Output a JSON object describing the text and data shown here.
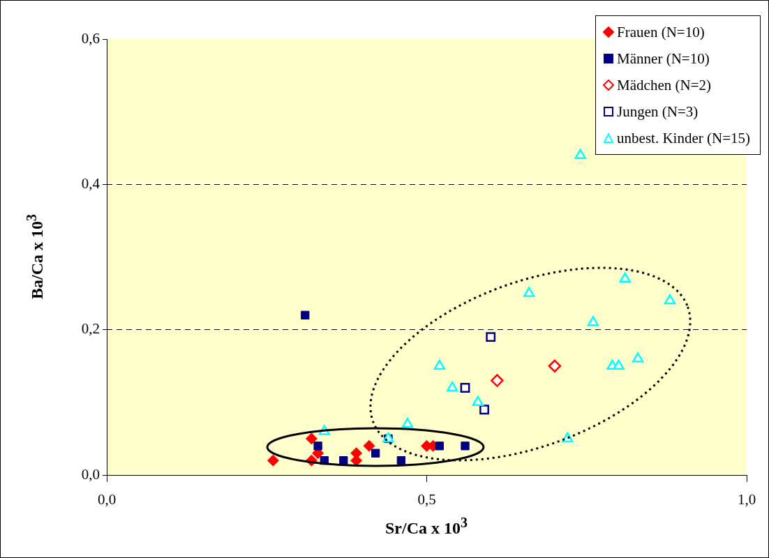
{
  "chart_data": {
    "type": "scatter",
    "xlabel": "Sr/Ca x 10$^{3}$",
    "ylabel": "Ba/Ca x 10$^{3}$",
    "xlim": [
      0,
      1
    ],
    "xticks": [
      {
        "value": 0,
        "label": "0,0"
      },
      {
        "value": 0.5,
        "label": "0,5"
      },
      {
        "value": 1,
        "label": "1,0"
      }
    ],
    "ylim": [
      0,
      0.6
    ],
    "yticks": [
      {
        "value": 0,
        "label": "0,0"
      },
      {
        "value": 0.2,
        "label": "0,2"
      },
      {
        "value": 0.4,
        "label": "0,4"
      },
      {
        "value": 0.6,
        "label": "0,6"
      }
    ],
    "grid": "y",
    "legend": "top right",
    "series": [
      {
        "name": "Frauen (N=10)",
        "color": "#ff0000",
        "marker": "diamond",
        "x": [
          0.26,
          0.32,
          0.32,
          0.33,
          0.39,
          0.39,
          0.41,
          0.5,
          0.51
        ],
        "values": [
          0.02,
          0.05,
          0.02,
          0.03,
          0.03,
          0.02,
          0.04,
          0.04,
          0.04
        ]
      },
      {
        "name": "Männer (N=10)",
        "color": "#000080",
        "marker": "square",
        "x": [
          0.31,
          0.33,
          0.34,
          0.37,
          0.42,
          0.44,
          0.46,
          0.52,
          0.56
        ],
        "values": [
          0.22,
          0.04,
          0.02,
          0.02,
          0.03,
          0.05,
          0.02,
          0.04,
          0.04
        ]
      },
      {
        "name": "Mädchen (N=2)",
        "color": "#ff0000",
        "marker": "diamond",
        "x": [
          0.61,
          0.7
        ],
        "values": [
          0.13,
          0.15
        ]
      },
      {
        "name": "Jungen (N=3)",
        "color": "#000080",
        "marker": "square",
        "x": [
          0.6,
          0.56,
          0.59
        ],
        "values": [
          0.19,
          0.12,
          0.09
        ]
      },
      {
        "name": "unbest. Kinder (N=15)",
        "color": "#00ffff",
        "marker": "triangle",
        "x": [
          0.66,
          0.81,
          0.88,
          0.76,
          0.52,
          0.54,
          0.58,
          0.79,
          0.8,
          0.83,
          0.47,
          0.44,
          0.72,
          0.34,
          0.74
        ],
        "values": [
          0.25,
          0.27,
          0.24,
          0.21,
          0.15,
          0.12,
          0.1,
          0.15,
          0.15,
          0.16,
          0.07,
          0.05,
          0.05,
          0.06,
          0.44
        ]
      }
    ]
  }
}
